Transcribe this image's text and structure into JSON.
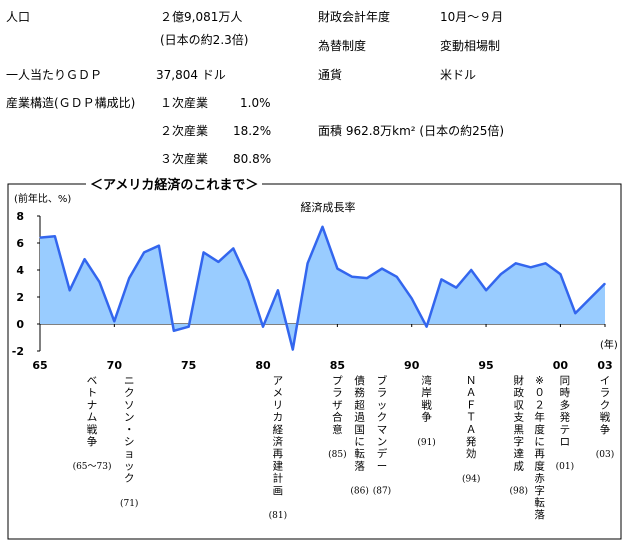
{
  "facts": {
    "population_label": "人口",
    "population_value": "２億9,081万人",
    "population_note": "(日本の約2.3倍)",
    "fiscal_year_label": "財政会計年度",
    "fiscal_year_value": "10月～９月",
    "exchange_label": "為替制度",
    "exchange_value": "変動相場制",
    "gdp_per_capita_label": "一人当たりＧＤＰ",
    "gdp_per_capita_value": "37,804 ドル",
    "currency_label": "通貨",
    "currency_value": "米ドル",
    "industry_label": "産業構造(ＧＤＰ構成比)",
    "primary_label": "１次産業",
    "primary_value": "1.0%",
    "secondary_label": "２次産業",
    "secondary_value": "18.2%",
    "tertiary_label": "３次産業",
    "tertiary_value": "80.8%",
    "area_text": "面積 962.8万km² (日本の約25倍)"
  },
  "section_title": "＜アメリカ経済のこれまで＞",
  "chart_data": {
    "type": "area",
    "title": "経済成長率",
    "ylabel": "(前年比、%)",
    "xlabel": "(年)",
    "color": "#3366ee",
    "fill": "#99ccff",
    "ylim": [
      -2,
      8
    ],
    "yticks": [
      8,
      6,
      4,
      2,
      0,
      -2
    ],
    "xlim": [
      1965,
      2003
    ],
    "xticks": [
      {
        "year": 1965,
        "label": "65"
      },
      {
        "year": 1970,
        "label": "70"
      },
      {
        "year": 1975,
        "label": "75"
      },
      {
        "year": 1980,
        "label": "80"
      },
      {
        "year": 1985,
        "label": "85"
      },
      {
        "year": 1990,
        "label": "90"
      },
      {
        "year": 1995,
        "label": "95"
      },
      {
        "year": 2000,
        "label": "00"
      },
      {
        "year": 2003,
        "label": "03"
      }
    ],
    "x": [
      1965,
      1966,
      1967,
      1968,
      1969,
      1970,
      1971,
      1972,
      1973,
      1974,
      1975,
      1976,
      1977,
      1978,
      1979,
      1980,
      1981,
      1982,
      1983,
      1984,
      1985,
      1986,
      1987,
      1988,
      1989,
      1990,
      1991,
      1992,
      1993,
      1994,
      1995,
      1996,
      1997,
      1998,
      1999,
      2000,
      2001,
      2002,
      2003
    ],
    "values": [
      6.4,
      6.5,
      2.5,
      4.8,
      3.1,
      0.2,
      3.4,
      5.3,
      5.8,
      -0.5,
      -0.2,
      5.3,
      4.6,
      5.6,
      3.2,
      -0.2,
      2.5,
      -1.9,
      4.5,
      7.2,
      4.1,
      3.5,
      3.4,
      4.1,
      3.5,
      1.9,
      -0.2,
      3.3,
      2.7,
      4.0,
      2.5,
      3.7,
      4.5,
      4.2,
      4.5,
      3.7,
      0.8,
      1.9,
      3.0
    ],
    "annotations": [
      {
        "year": 1968.5,
        "text": "ベトナム戦争",
        "sub": "(65～73)"
      },
      {
        "year": 1971,
        "text": "ニクソン・ショック",
        "sub": "(71)"
      },
      {
        "year": 1981,
        "text": "アメリカ経済再建計画",
        "sub": "(81)"
      },
      {
        "year": 1985,
        "text": "プラザ合意",
        "sub": "(85)"
      },
      {
        "year": 1986.5,
        "text": "債務超過国に転落",
        "sub": "(86)"
      },
      {
        "year": 1988,
        "text": "ブラックマンデー",
        "sub": "(87)"
      },
      {
        "year": 1991,
        "text": "湾岸戦争",
        "sub": "(91)"
      },
      {
        "year": 1994,
        "text": "ＮＡＦＴＡ発効",
        "sub": "(94)"
      },
      {
        "year": 1997.2,
        "text": "財政収支黒字達成",
        "sub": "(98)"
      },
      {
        "year": 1998.6,
        "text": "※０２年度に再度赤字転落",
        "sub": ""
      },
      {
        "year": 2000.3,
        "text": "同時多発テロ",
        "sub": "(01)"
      },
      {
        "year": 2003,
        "text": "イラク戦争",
        "sub": "(03)"
      }
    ]
  }
}
